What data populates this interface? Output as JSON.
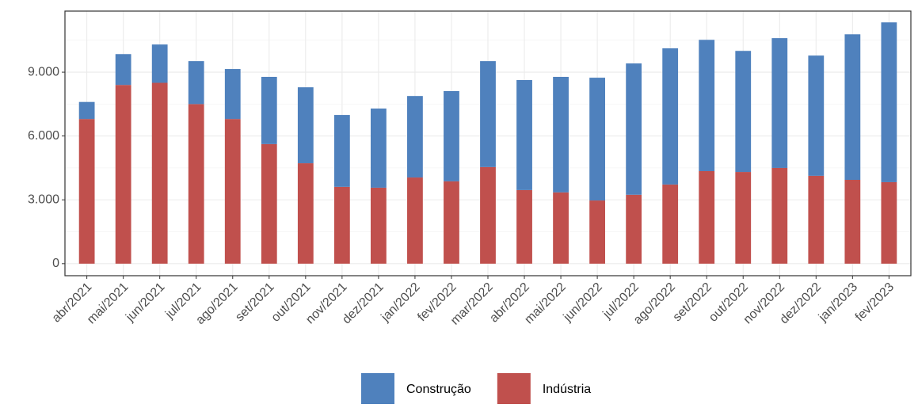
{
  "chart_data": {
    "type": "stacked_bar",
    "categories": [
      "abr/2021",
      "mai/2021",
      "jun/2021",
      "jul/2021",
      "ago/2021",
      "set/2021",
      "out/2021",
      "nov/2021",
      "dez/2021",
      "jan/2022",
      "fev/2022",
      "mar/2022",
      "abr/2022",
      "mai/2022",
      "jun/2022",
      "jul/2022",
      "ago/2022",
      "set/2022",
      "out/2022",
      "nov/2022",
      "dez/2022",
      "jan/2023",
      "fev/2023"
    ],
    "series": [
      {
        "name": "Construção",
        "color": "#4f81bd",
        "values": [
          800,
          1450,
          1800,
          2020,
          2350,
          3160,
          3570,
          3380,
          3720,
          3830,
          4240,
          4980,
          5170,
          5430,
          5770,
          6170,
          6400,
          6170,
          5690,
          6100,
          5650,
          6840,
          7510
        ]
      },
      {
        "name": "Indústria",
        "color": "#c0504d",
        "values": [
          6800,
          8400,
          8500,
          7500,
          6800,
          5620,
          4720,
          3610,
          3570,
          4050,
          3870,
          4540,
          3460,
          3350,
          2970,
          3240,
          3720,
          4350,
          4310,
          4500,
          4130,
          3940,
          3830
        ]
      }
    ],
    "ylim": [
      -565,
      11870
    ],
    "yticks": [
      0,
      {
        "value": 3000,
        "label": "3.000"
      },
      {
        "value": 6000,
        "label": "6.000"
      },
      {
        "value": 9000,
        "label": "9.000"
      }
    ],
    "grid": true,
    "legend": "bottom"
  }
}
